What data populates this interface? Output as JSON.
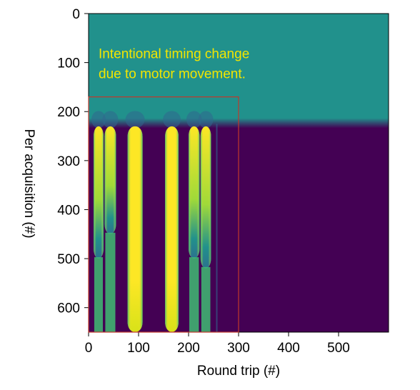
{
  "chart_data": {
    "type": "heatmap",
    "xlabel": "Round trip (#)",
    "ylabel": "Per acquisition (#)",
    "xlim": [
      0,
      600
    ],
    "ylim": [
      650,
      0
    ],
    "x_ticks": [
      0,
      100,
      200,
      300,
      400,
      500
    ],
    "y_ticks": [
      0,
      100,
      200,
      300,
      400,
      500,
      600
    ],
    "colormap": "viridis",
    "colors": {
      "teal": "#21918c",
      "purple": "#440154",
      "yellow": "#fde725",
      "green": "#3fbc73",
      "blue": "#31688e",
      "highlight_box": "#c0392b",
      "annotation": "#f2e600"
    },
    "background_field": {
      "boundary_y": 225,
      "upper_value": "teal",
      "lower_value": "purple"
    },
    "bands": [
      {
        "x_start": 10,
        "x_end": 30,
        "peak": "yellow",
        "fades_out_at_y": 500
      },
      {
        "x_start": 32,
        "x_end": 55,
        "peak": "yellow",
        "fades_out_at_y": 450
      },
      {
        "x_start": 78,
        "x_end": 108,
        "peak": "yellow",
        "fades_out_at_y": 650
      },
      {
        "x_start": 153,
        "x_end": 180,
        "peak": "yellow",
        "fades_out_at_y": 650
      },
      {
        "x_start": 200,
        "x_end": 222,
        "peak": "yellow",
        "fades_out_at_y": 500
      },
      {
        "x_start": 224,
        "x_end": 245,
        "peak": "yellow",
        "fades_out_at_y": 520
      }
    ],
    "highlight_region": {
      "x": [
        0,
        300
      ],
      "y": [
        170,
        650
      ]
    },
    "annotation": {
      "lines": [
        "Intentional timing change",
        "due to motor movement."
      ],
      "x": 20,
      "y": 100
    }
  }
}
